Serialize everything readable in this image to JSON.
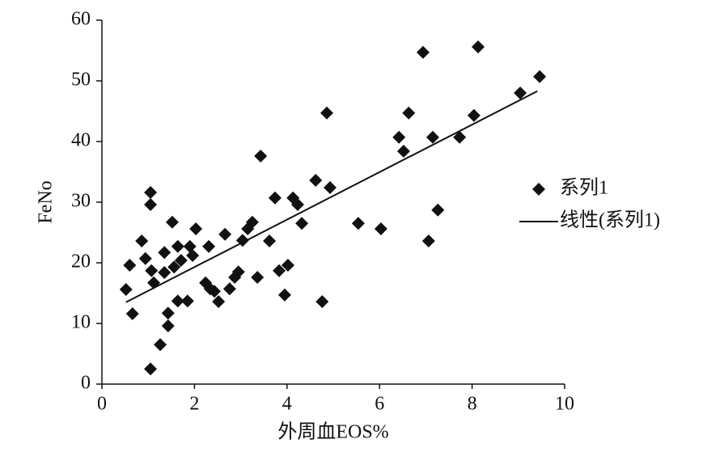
{
  "chart_data": {
    "type": "scatter",
    "x_label": "外周血EOS%",
    "y_label": "FeNo",
    "xlim": [
      0,
      10
    ],
    "xticks": [
      0,
      2,
      4,
      6,
      8,
      10
    ],
    "ylim": [
      0,
      60
    ],
    "yticks": [
      0,
      10,
      20,
      30,
      40,
      50,
      60
    ],
    "legend": "right",
    "series": [
      {
        "name": "系列1",
        "color": "#111111",
        "x": [
          0.52,
          0.6,
          0.66,
          0.86,
          0.94,
          1.05,
          1.05,
          1.05,
          1.07,
          1.12,
          1.26,
          1.35,
          1.35,
          1.43,
          1.43,
          1.52,
          1.56,
          1.64,
          1.64,
          1.71,
          1.85,
          1.9,
          1.96,
          2.03,
          2.24,
          2.31,
          2.34,
          2.43,
          2.52,
          2.66,
          2.76,
          2.87,
          2.95,
          3.04,
          3.15,
          3.25,
          3.36,
          3.43,
          3.62,
          3.74,
          3.83,
          3.95,
          4.02,
          4.13,
          4.23,
          4.32,
          4.62,
          4.76,
          4.86,
          4.93,
          5.54,
          6.03,
          6.42,
          6.52,
          6.63,
          6.94,
          7.06,
          7.15,
          7.26,
          7.73,
          8.04,
          8.13,
          9.04,
          9.46
        ],
        "values": [
          15.6,
          19.6,
          11.6,
          23.6,
          20.7,
          31.6,
          29.6,
          2.5,
          18.7,
          16.7,
          6.5,
          21.7,
          18.4,
          11.7,
          9.6,
          26.7,
          19.3,
          22.7,
          13.7,
          20.4,
          13.7,
          22.7,
          21.2,
          25.6,
          16.7,
          22.7,
          15.7,
          15.3,
          13.6,
          24.7,
          15.7,
          17.6,
          18.5,
          23.7,
          25.6,
          26.7,
          17.6,
          37.6,
          23.6,
          30.7,
          18.7,
          14.7,
          19.6,
          30.7,
          29.6,
          26.5,
          33.6,
          13.6,
          44.7,
          32.4,
          26.5,
          25.6,
          40.7,
          38.4,
          44.7,
          54.7,
          23.6,
          40.7,
          28.7,
          40.7,
          44.3,
          55.6,
          48.0,
          50.7
        ]
      },
      {
        "name": "线性(系列1)",
        "type": "line",
        "color": "#111111",
        "x": [
          0.52,
          9.41
        ],
        "values": [
          13.5,
          48.3
        ]
      }
    ]
  }
}
